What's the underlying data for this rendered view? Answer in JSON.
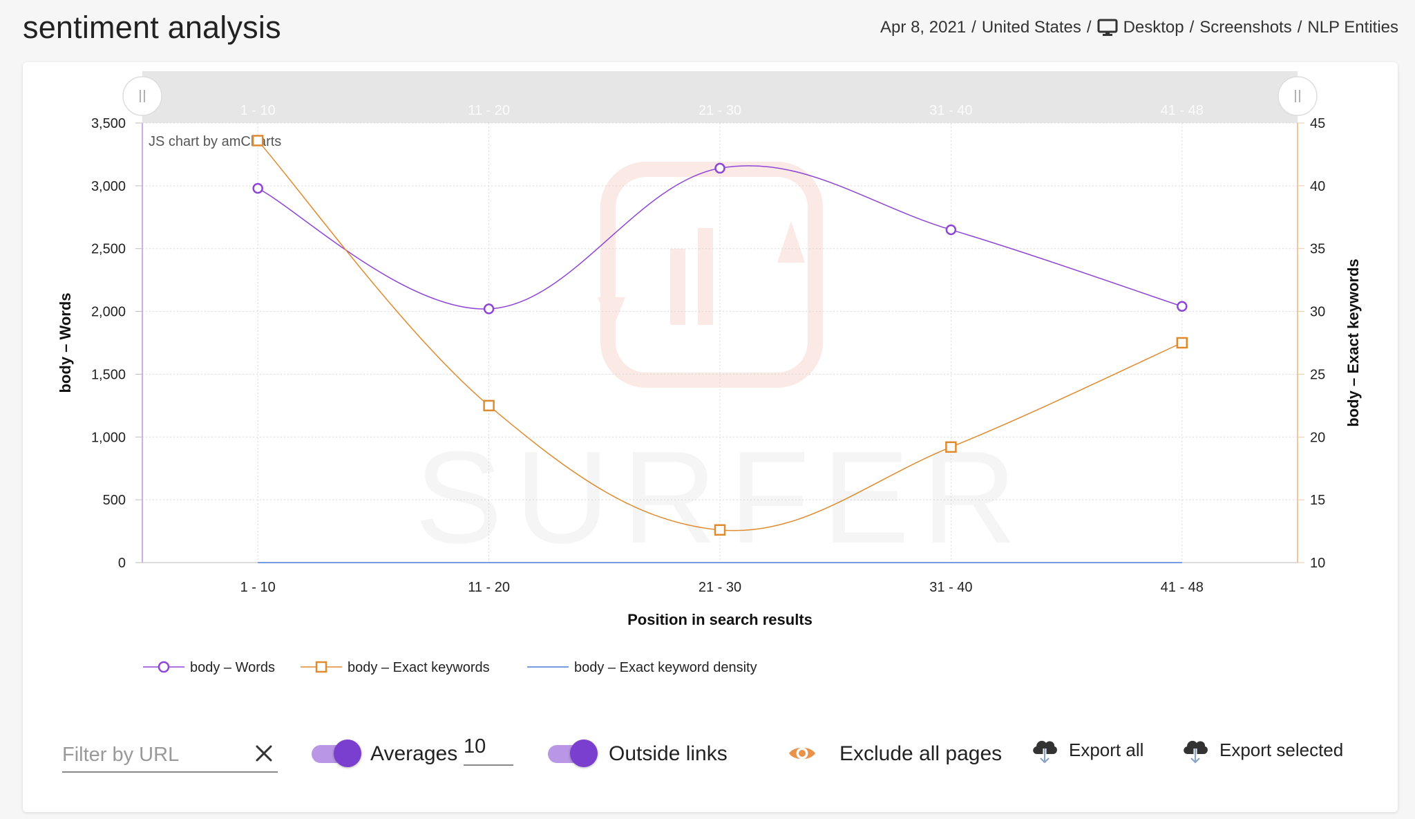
{
  "header": {
    "title": "sentiment analysis",
    "breadcrumb": {
      "date": "Apr 8, 2021",
      "country": "United States",
      "device": "Desktop",
      "screenshots": "Screenshots",
      "nlp": "NLP Entities",
      "separator": "/"
    }
  },
  "chart_data": {
    "type": "line",
    "categories": [
      "1 - 10",
      "11 - 20",
      "21 - 30",
      "31 - 40",
      "41 - 48"
    ],
    "series": [
      {
        "name": "body – Words",
        "axis": "left",
        "values": [
          2980,
          2020,
          3140,
          2650,
          2040
        ],
        "color": "#8e44d6",
        "marker": "circle"
      },
      {
        "name": "body – Exact keywords",
        "axis": "right",
        "values": [
          43.6,
          22.5,
          12.6,
          19.2,
          27.5
        ],
        "color": "#e08a2e",
        "marker": "square"
      },
      {
        "name": "body – Exact keyword density",
        "axis": "left",
        "values": [
          0,
          0,
          0,
          0,
          0
        ],
        "color": "#4a78d6",
        "marker": "none"
      }
    ],
    "y_left": {
      "label": "body – Words",
      "min": 0,
      "max": 3500,
      "step": 500,
      "ticks": [
        "0",
        "500",
        "1,000",
        "1,500",
        "2,000",
        "2,500",
        "3,000",
        "3,500"
      ]
    },
    "y_right": {
      "label": "body – Exact keywords",
      "min": 10,
      "max": 45,
      "step": 5,
      "ticks": [
        "10",
        "15",
        "20",
        "25",
        "30",
        "35",
        "40",
        "45"
      ]
    },
    "xlabel": "Position in search results",
    "credit": "JS chart by amCharts",
    "watermark": "SURFER",
    "grid": true,
    "legend": "bottom-left",
    "scrollbar": true
  },
  "toolbar": {
    "filter_placeholder": "Filter by URL",
    "averages_label": "Averages",
    "averages_value": "10",
    "outside_links_label": "Outside links",
    "exclude_label": "Exclude all pages",
    "export_all_label": "Export all",
    "export_selected_label": "Export selected"
  }
}
